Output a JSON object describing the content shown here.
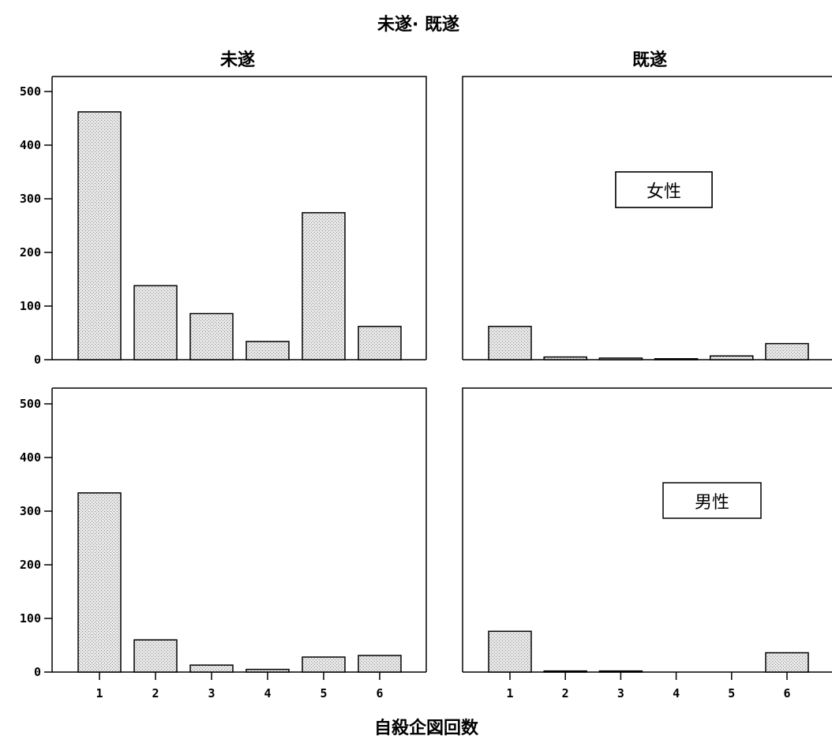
{
  "chart_data": {
    "type": "bar",
    "title": "未遂· 既遂",
    "xlabel": "自殺企図回数",
    "ylabel": "",
    "categories": [
      "1",
      "2",
      "3",
      "4",
      "5",
      "6"
    ],
    "ylim": [
      0,
      500
    ],
    "yticks": [
      "0",
      "100",
      "200",
      "300",
      "400",
      "500"
    ],
    "grid": false,
    "column_titles": [
      "未遂",
      "既遂"
    ],
    "panels": [
      {
        "column": "未遂",
        "row_label": "女性",
        "values": [
          462,
          138,
          86,
          34,
          274,
          62
        ]
      },
      {
        "column": "既遂",
        "row_label": "女性",
        "values": [
          62,
          5,
          3,
          1,
          7,
          30
        ]
      },
      {
        "column": "未遂",
        "row_label": "男性",
        "values": [
          334,
          60,
          13,
          5,
          28,
          31
        ]
      },
      {
        "column": "既遂",
        "row_label": "男性",
        "values": [
          76,
          2,
          2,
          0,
          0,
          36
        ]
      }
    ],
    "bar_fill": "#d9d9d9",
    "bar_stroke": "#000000"
  }
}
